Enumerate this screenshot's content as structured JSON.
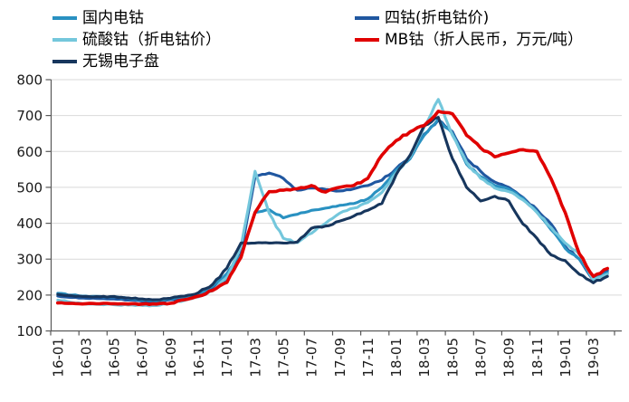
{
  "chart_data": {
    "type": "line",
    "title": "",
    "grid": "horizontal",
    "legend_position": "top-left-two-columns",
    "ylim": [
      100,
      800
    ],
    "y_ticks": [
      100,
      200,
      300,
      400,
      500,
      600,
      700,
      800
    ],
    "x_tick_labels": [
      "16-01",
      "16-03",
      "16-05",
      "16-07",
      "16-09",
      "16-11",
      "17-01",
      "17-03",
      "17-05",
      "17-07",
      "17-09",
      "17-11",
      "18-01",
      "18-03",
      "18-05",
      "18-07",
      "18-09",
      "18-11",
      "19-01",
      "19-03"
    ],
    "x_months": [
      "16-01",
      "16-02",
      "16-03",
      "16-04",
      "16-05",
      "16-06",
      "16-07",
      "16-08",
      "16-09",
      "16-10",
      "16-11",
      "16-12",
      "17-01",
      "17-02",
      "17-03",
      "17-04",
      "17-05",
      "17-06",
      "17-07",
      "17-08",
      "17-09",
      "17-10",
      "17-11",
      "17-12",
      "18-01",
      "18-02",
      "18-03",
      "18-04",
      "18-05",
      "18-06",
      "18-07",
      "18-08",
      "18-09",
      "18-10",
      "18-11",
      "18-12",
      "19-01",
      "19-02",
      "19-03",
      "19-04"
    ],
    "series": [
      {
        "id": "domestic-electrolytic-cobalt",
        "name": "国内电钴",
        "color": "#2991C1",
        "values": [
          205,
          200,
          197,
          196,
          195,
          191,
          186,
          184,
          189,
          195,
          203,
          225,
          260,
          310,
          430,
          438,
          415,
          425,
          436,
          442,
          450,
          455,
          468,
          500,
          548,
          580,
          645,
          690,
          650,
          565,
          530,
          505,
          495,
          470,
          432,
          382,
          330,
          300,
          245,
          262
        ]
      },
      {
        "id": "cobalt-tetroxide-converted",
        "name": "四钴(折电钴价)",
        "color": "#2057A0",
        "values": [
          197,
          193,
          191,
          190,
          189,
          186,
          183,
          181,
          187,
          193,
          201,
          220,
          245,
          315,
          530,
          540,
          525,
          492,
          498,
          494,
          490,
          496,
          505,
          520,
          552,
          585,
          648,
          688,
          655,
          580,
          545,
          515,
          500,
          472,
          438,
          398,
          335,
          300,
          242,
          268
        ]
      },
      {
        "id": "cobalt-sulfate-converted",
        "name": "硫酸钴（折电钴价）",
        "color": "#74C7DC",
        "values": [
          186,
          179,
          175,
          174,
          173,
          172,
          171,
          171,
          177,
          185,
          195,
          212,
          248,
          335,
          545,
          428,
          358,
          346,
          372,
          400,
          428,
          442,
          458,
          486,
          540,
          585,
          668,
          745,
          645,
          570,
          525,
          498,
          488,
          465,
          430,
          388,
          345,
          315,
          242,
          258
        ]
      },
      {
        "id": "mb-cobalt-rmb",
        "name": "MB钴（折人民币，万元/吨）",
        "color": "#E00000",
        "values": [
          178,
          177,
          176,
          176,
          176,
          175,
          175,
          175,
          177,
          187,
          197,
          213,
          235,
          305,
          430,
          488,
          492,
          496,
          505,
          487,
          500,
          505,
          525,
          590,
          630,
          655,
          672,
          712,
          705,
          645,
          610,
          585,
          596,
          605,
          600,
          524,
          430,
          315,
          252,
          274
        ]
      },
      {
        "id": "wuxi-electronic-exchange",
        "name": "无锡电子盘",
        "color": "#17365D",
        "values": [
          202,
          198,
          196,
          195,
          196,
          192,
          189,
          187,
          191,
          197,
          207,
          230,
          275,
          345,
          345,
          345,
          345,
          348,
          386,
          392,
          406,
          420,
          436,
          455,
          535,
          590,
          672,
          695,
          580,
          500,
          462,
          475,
          462,
          398,
          358,
          312,
          296,
          258,
          234,
          252
        ]
      }
    ]
  }
}
